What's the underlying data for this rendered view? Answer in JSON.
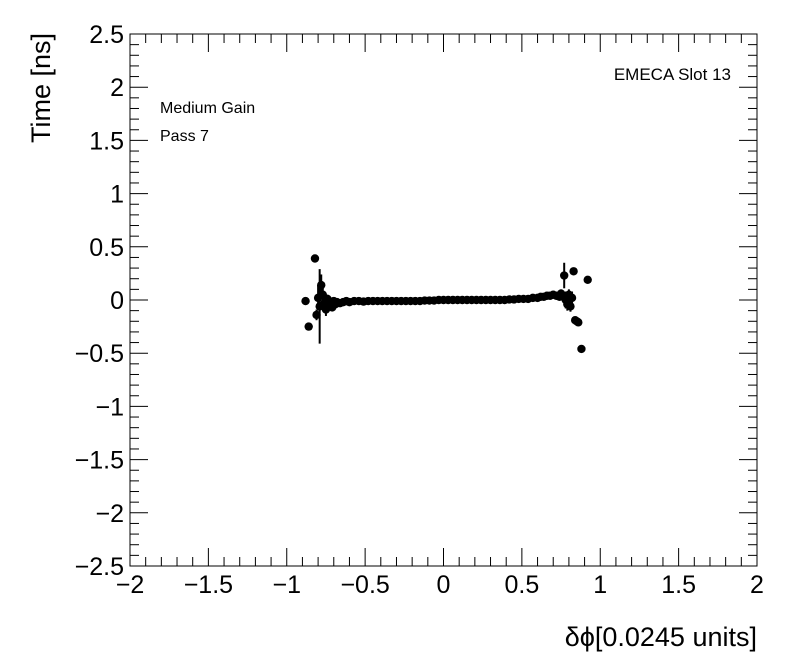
{
  "chart_data": {
    "type": "scatter",
    "title": "",
    "xlabel": "δϕ[0.0245 units]",
    "ylabel": "Time [ns]",
    "xlim": [
      -2,
      2
    ],
    "ylim": [
      -2.5,
      2.5
    ],
    "x_ticks": [
      "−2",
      "−1.5",
      "−1",
      "−0.5",
      "0",
      "0.5",
      "1",
      "1.5",
      "2"
    ],
    "y_ticks": [
      "−2.5",
      "−2",
      "−1.5",
      "−1",
      "−0.5",
      "0",
      "0.5",
      "1",
      "1.5",
      "2",
      "2.5"
    ],
    "annotations": {
      "top_right": "EMECA Slot 13",
      "gain": "Medium Gain",
      "pass": "Pass 7"
    },
    "grid": false,
    "series": [
      {
        "marker": "circle",
        "color": "#000000",
        "points": [
          {
            "x": -0.88,
            "y": -0.01,
            "err": 0.01
          },
          {
            "x": -0.86,
            "y": -0.25,
            "err": 0.01
          },
          {
            "x": -0.82,
            "y": 0.39,
            "err": 0.02
          },
          {
            "x": -0.81,
            "y": -0.14,
            "err": 0.05
          },
          {
            "x": -0.8,
            "y": 0.02,
            "err": 0.12
          },
          {
            "x": -0.79,
            "y": -0.06,
            "err": 0.35
          },
          {
            "x": -0.78,
            "y": 0.14,
            "err": 0.1
          },
          {
            "x": -0.77,
            "y": 0.05,
            "err": 0.06
          },
          {
            "x": -0.76,
            "y": -0.03,
            "err": 0.05
          },
          {
            "x": -0.75,
            "y": -0.09,
            "err": 0.06
          },
          {
            "x": -0.74,
            "y": 0.01,
            "err": 0.04
          },
          {
            "x": -0.73,
            "y": -0.04,
            "err": 0.04
          },
          {
            "x": -0.72,
            "y": -0.02,
            "err": 0.03
          },
          {
            "x": -0.71,
            "y": -0.07,
            "err": 0.03
          },
          {
            "x": -0.7,
            "y": -0.01,
            "err": 0.02
          },
          {
            "x": -0.69,
            "y": -0.04,
            "err": 0.02
          },
          {
            "x": -0.68,
            "y": -0.02,
            "err": 0.01
          },
          {
            "x": -0.66,
            "y": -0.03,
            "err": 0.01
          },
          {
            "x": -0.64,
            "y": -0.02,
            "err": 0.01
          },
          {
            "x": -0.62,
            "y": -0.01,
            "err": 0.01
          },
          {
            "x": -0.6,
            "y": -0.02,
            "err": 0.01
          },
          {
            "x": -0.57,
            "y": -0.01,
            "err": 0.0
          },
          {
            "x": -0.54,
            "y": -0.01,
            "err": 0.0
          },
          {
            "x": -0.51,
            "y": -0.015,
            "err": 0.0
          },
          {
            "x": -0.48,
            "y": -0.01,
            "err": 0.0
          },
          {
            "x": -0.45,
            "y": -0.01,
            "err": 0.0
          },
          {
            "x": -0.42,
            "y": -0.01,
            "err": 0.0
          },
          {
            "x": -0.39,
            "y": -0.01,
            "err": 0.0
          },
          {
            "x": -0.36,
            "y": -0.01,
            "err": 0.0
          },
          {
            "x": -0.33,
            "y": -0.01,
            "err": 0.0
          },
          {
            "x": -0.3,
            "y": -0.01,
            "err": 0.0
          },
          {
            "x": -0.27,
            "y": -0.01,
            "err": 0.0
          },
          {
            "x": -0.24,
            "y": -0.01,
            "err": 0.0
          },
          {
            "x": -0.21,
            "y": -0.01,
            "err": 0.0
          },
          {
            "x": -0.18,
            "y": -0.01,
            "err": 0.0
          },
          {
            "x": -0.15,
            "y": -0.01,
            "err": 0.0
          },
          {
            "x": -0.12,
            "y": -0.005,
            "err": 0.0
          },
          {
            "x": -0.09,
            "y": -0.005,
            "err": 0.0
          },
          {
            "x": -0.06,
            "y": -0.005,
            "err": 0.0
          },
          {
            "x": -0.03,
            "y": 0.0,
            "err": 0.0
          },
          {
            "x": 0.0,
            "y": 0.0,
            "err": 0.0
          },
          {
            "x": 0.03,
            "y": 0.0,
            "err": 0.0
          },
          {
            "x": 0.06,
            "y": 0.0,
            "err": 0.0
          },
          {
            "x": 0.09,
            "y": 0.0,
            "err": 0.0
          },
          {
            "x": 0.12,
            "y": 0.0,
            "err": 0.0
          },
          {
            "x": 0.15,
            "y": 0.0,
            "err": 0.0
          },
          {
            "x": 0.18,
            "y": 0.0,
            "err": 0.0
          },
          {
            "x": 0.21,
            "y": 0.0,
            "err": 0.0
          },
          {
            "x": 0.24,
            "y": 0.0,
            "err": 0.0
          },
          {
            "x": 0.27,
            "y": 0.0,
            "err": 0.0
          },
          {
            "x": 0.3,
            "y": 0.0,
            "err": 0.0
          },
          {
            "x": 0.33,
            "y": 0.0,
            "err": 0.0
          },
          {
            "x": 0.36,
            "y": 0.0,
            "err": 0.0
          },
          {
            "x": 0.39,
            "y": 0.0,
            "err": 0.0
          },
          {
            "x": 0.42,
            "y": 0.005,
            "err": 0.0
          },
          {
            "x": 0.45,
            "y": 0.005,
            "err": 0.0
          },
          {
            "x": 0.48,
            "y": 0.01,
            "err": 0.0
          },
          {
            "x": 0.51,
            "y": 0.01,
            "err": 0.0
          },
          {
            "x": 0.54,
            "y": 0.01,
            "err": 0.0
          },
          {
            "x": 0.57,
            "y": 0.02,
            "err": 0.01
          },
          {
            "x": 0.6,
            "y": 0.02,
            "err": 0.01
          },
          {
            "x": 0.62,
            "y": 0.03,
            "err": 0.01
          },
          {
            "x": 0.64,
            "y": 0.03,
            "err": 0.01
          },
          {
            "x": 0.66,
            "y": 0.04,
            "err": 0.01
          },
          {
            "x": 0.68,
            "y": 0.04,
            "err": 0.01
          },
          {
            "x": 0.7,
            "y": 0.05,
            "err": 0.02
          },
          {
            "x": 0.72,
            "y": 0.04,
            "err": 0.02
          },
          {
            "x": 0.74,
            "y": 0.03,
            "err": 0.03
          },
          {
            "x": 0.75,
            "y": 0.06,
            "err": 0.04
          },
          {
            "x": 0.76,
            "y": 0.04,
            "err": 0.05
          },
          {
            "x": 0.77,
            "y": 0.23,
            "err": 0.12
          },
          {
            "x": 0.78,
            "y": 0.0,
            "err": 0.08
          },
          {
            "x": 0.79,
            "y": -0.04,
            "err": 0.06
          },
          {
            "x": 0.8,
            "y": 0.05,
            "err": 0.05
          },
          {
            "x": 0.81,
            "y": -0.06,
            "err": 0.05
          },
          {
            "x": 0.82,
            "y": 0.02,
            "err": 0.06
          },
          {
            "x": 0.83,
            "y": 0.27,
            "err": 0.02
          },
          {
            "x": 0.84,
            "y": -0.19,
            "err": 0.02
          },
          {
            "x": 0.85,
            "y": -0.2,
            "err": 0.02
          },
          {
            "x": 0.86,
            "y": -0.21,
            "err": 0.02
          },
          {
            "x": 0.88,
            "y": -0.46,
            "err": 0.01
          },
          {
            "x": 0.92,
            "y": 0.19,
            "err": 0.01
          }
        ]
      }
    ]
  }
}
